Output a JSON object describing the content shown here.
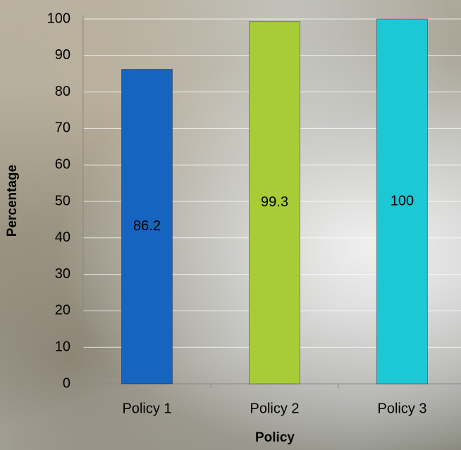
{
  "chart_data": {
    "type": "bar",
    "x_label": "Policy",
    "y_label": "Percentage",
    "categories": [
      "Policy 1",
      "Policy 2",
      "Policy 3"
    ],
    "values": [
      86.2,
      99.3,
      100
    ],
    "colors": [
      "#1565c0",
      "#a8cc35",
      "#1cc8d4"
    ],
    "ylim": [
      0,
      100
    ],
    "yticks": [
      0,
      10,
      20,
      30,
      40,
      50,
      60,
      70,
      80,
      90,
      100
    ],
    "grid": true
  }
}
